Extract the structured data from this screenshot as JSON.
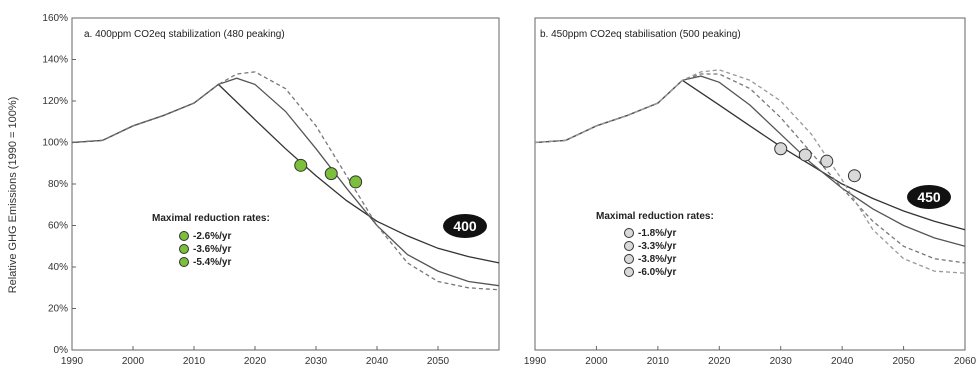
{
  "figure": {
    "ylabel": "Relative GHG Emissions (1990 = 100%)"
  },
  "chart_data": [
    {
      "type": "line",
      "title": "a. 400ppm CO2eq stabilization (480 peaking)",
      "badge": "400",
      "xlim": [
        1990,
        2060
      ],
      "ylim": [
        0,
        160
      ],
      "x_ticks": [
        "1990",
        "2000",
        "2010",
        "2020",
        "2030",
        "2040",
        "2050"
      ],
      "y_ticks": [
        "0%",
        "20%",
        "40%",
        "60%",
        "80%",
        "100%",
        "120%",
        "140%",
        "160%"
      ],
      "grid": false,
      "legend_title": "Maximal reduction rates:",
      "legend_placement": "center-left",
      "series": [
        {
          "name": "-2.6%/yr",
          "line_color": "#333333",
          "dash": "solid",
          "marker_color": "#7bbf3a",
          "x": [
            1990,
            1995,
            2000,
            2005,
            2010,
            2014,
            2020,
            2025,
            2030,
            2035,
            2040,
            2045,
            2050,
            2055,
            2060
          ],
          "y": [
            100,
            101,
            108,
            113,
            119,
            128,
            111,
            97,
            84,
            72,
            62,
            55,
            49,
            45,
            42
          ]
        },
        {
          "name": "-3.6%/yr",
          "line_color": "#555555",
          "dash": "solid",
          "marker_color": "#7bbf3a",
          "x": [
            1990,
            1995,
            2000,
            2005,
            2010,
            2014,
            2017,
            2020,
            2025,
            2030,
            2035,
            2040,
            2045,
            2050,
            2055,
            2060
          ],
          "y": [
            100,
            101,
            108,
            113,
            119,
            128,
            131,
            128,
            115,
            97,
            78,
            60,
            46,
            38,
            33,
            31
          ]
        },
        {
          "name": "-5.4%/yr",
          "line_color": "#777777",
          "dash": "dashed",
          "marker_color": "#7bbf3a",
          "x": [
            1990,
            1995,
            2000,
            2005,
            2010,
            2014,
            2017,
            2020,
            2025,
            2030,
            2035,
            2040,
            2045,
            2050,
            2055,
            2060
          ],
          "y": [
            100,
            101,
            108,
            113,
            119,
            128,
            133,
            134,
            126,
            108,
            84,
            60,
            42,
            33,
            30,
            29
          ]
        }
      ],
      "markers": [
        {
          "x": 2027.5,
          "y": 89
        },
        {
          "x": 2032.5,
          "y": 85
        },
        {
          "x": 2036.5,
          "y": 81
        }
      ]
    },
    {
      "type": "line",
      "title": "b. 450ppm CO2eq stabilisation (500 peaking)",
      "badge": "450",
      "xlim": [
        1990,
        2060
      ],
      "ylim": [
        0,
        160
      ],
      "x_ticks": [
        "1990",
        "2000",
        "2010",
        "2020",
        "2030",
        "2040",
        "2050",
        "2060"
      ],
      "y_ticks": [],
      "grid": false,
      "legend_title": "Maximal reduction rates:",
      "legend_placement": "center-left",
      "series": [
        {
          "name": "-1.8%/yr",
          "line_color": "#333333",
          "dash": "solid",
          "marker_color": "#d9d9d9",
          "x": [
            1990,
            1995,
            2000,
            2005,
            2010,
            2014,
            2020,
            2025,
            2030,
            2035,
            2040,
            2045,
            2050,
            2055,
            2060
          ],
          "y": [
            100,
            101,
            108,
            113,
            119,
            130,
            118,
            108,
            98,
            89,
            80,
            73,
            67,
            62,
            58
          ]
        },
        {
          "name": "-3.3%/yr",
          "line_color": "#555555",
          "dash": "solid",
          "marker_color": "#d9d9d9",
          "x": [
            1990,
            1995,
            2000,
            2005,
            2010,
            2014,
            2017,
            2020,
            2025,
            2030,
            2035,
            2040,
            2045,
            2050,
            2055,
            2060
          ],
          "y": [
            100,
            101,
            108,
            113,
            119,
            130,
            132,
            129,
            118,
            104,
            90,
            78,
            68,
            60,
            54,
            50
          ]
        },
        {
          "name": "-3.8%/yr",
          "line_color": "#777777",
          "dash": "dashed",
          "marker_color": "#d9d9d9",
          "x": [
            1990,
            1995,
            2000,
            2005,
            2010,
            2014,
            2017,
            2020,
            2025,
            2030,
            2035,
            2040,
            2045,
            2050,
            2055,
            2060
          ],
          "y": [
            100,
            101,
            108,
            113,
            119,
            130,
            133,
            133,
            126,
            112,
            95,
            78,
            62,
            50,
            44,
            42
          ]
        },
        {
          "name": "-6.0%/yr",
          "line_color": "#999999",
          "dash": "dashed",
          "marker_color": "#d9d9d9",
          "x": [
            1990,
            1995,
            2000,
            2005,
            2010,
            2014,
            2017,
            2020,
            2025,
            2030,
            2035,
            2040,
            2045,
            2050,
            2055,
            2060
          ],
          "y": [
            100,
            101,
            108,
            113,
            119,
            130,
            134,
            135,
            130,
            120,
            104,
            82,
            58,
            44,
            38,
            37
          ]
        }
      ],
      "markers": [
        {
          "x": 2030,
          "y": 97
        },
        {
          "x": 2034,
          "y": 94
        },
        {
          "x": 2037.5,
          "y": 91
        },
        {
          "x": 2042,
          "y": 84
        }
      ]
    }
  ]
}
